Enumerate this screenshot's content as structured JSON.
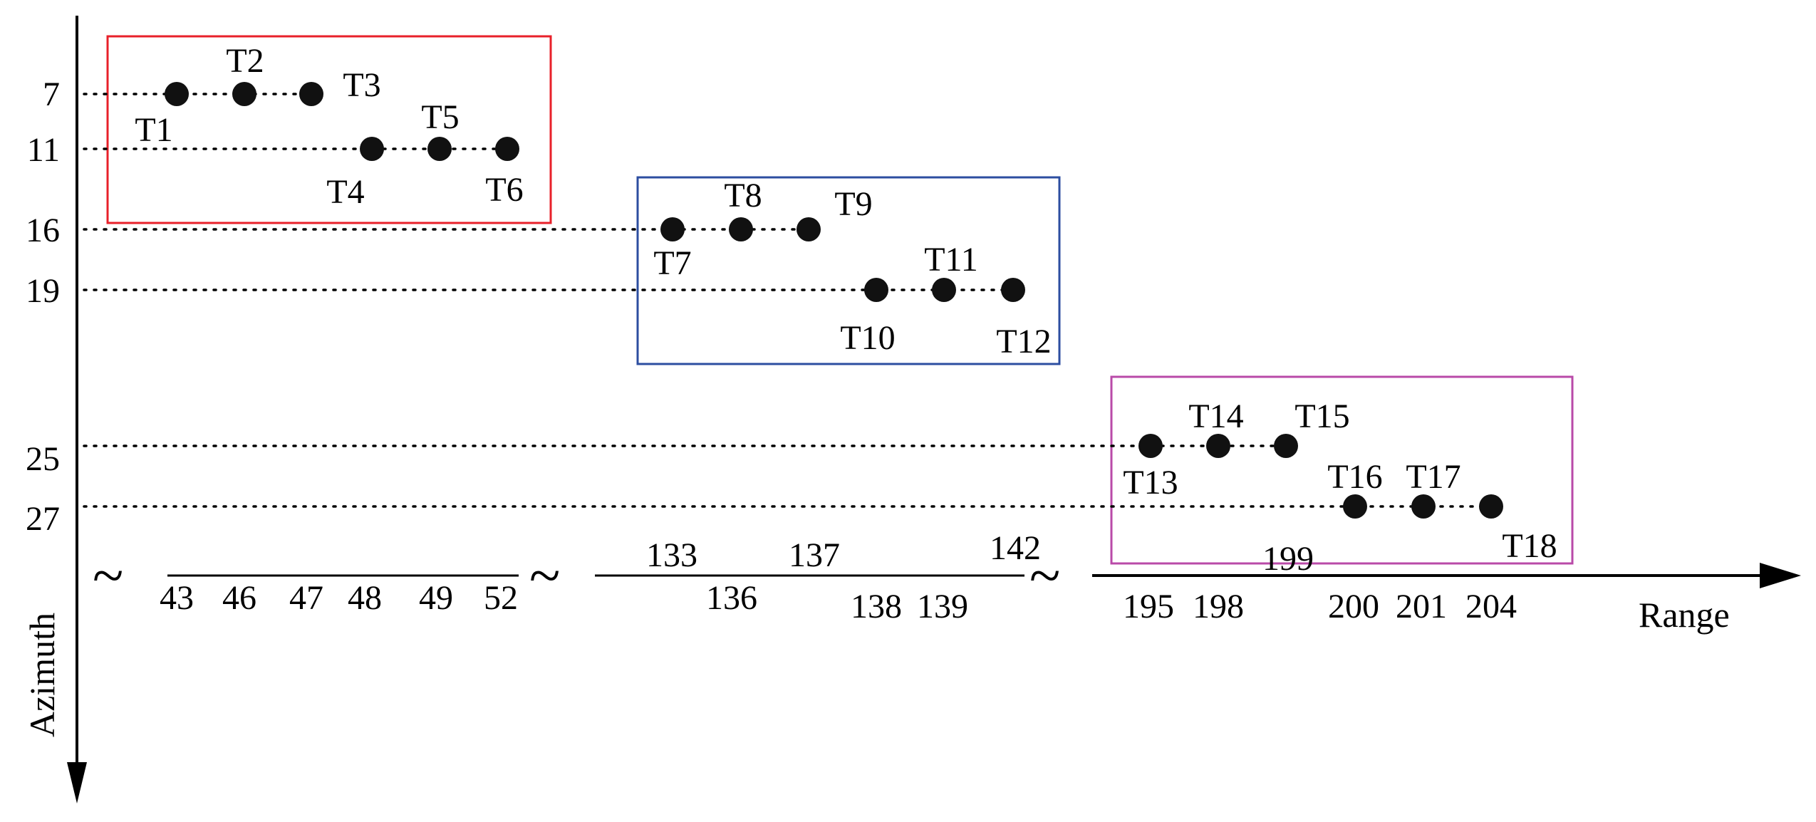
{
  "axes": {
    "vertical_label": "Azimuth",
    "horizontal_label": "Range"
  },
  "azimuth_ticks": [
    "7",
    "11",
    "16",
    "19",
    "25",
    "27"
  ],
  "range_ticks": [
    "43",
    "46",
    "47",
    "48",
    "49",
    "52",
    "133",
    "136",
    "137",
    "138",
    "139",
    "142",
    "195",
    "198",
    "199",
    "200",
    "201",
    "204"
  ],
  "axis_break_symbol": "~",
  "groups": [
    {
      "name": "group-1",
      "color": "#e8202a"
    },
    {
      "name": "group-2",
      "color": "#2c4ea0"
    },
    {
      "name": "group-3",
      "color": "#b94aa8"
    }
  ],
  "targets": [
    {
      "label": "T1",
      "range": 43,
      "azimuth": 7
    },
    {
      "label": "T2",
      "range": 46,
      "azimuth": 7
    },
    {
      "label": "T3",
      "range": 47,
      "azimuth": 7
    },
    {
      "label": "T4",
      "range": 48,
      "azimuth": 11
    },
    {
      "label": "T5",
      "range": 49,
      "azimuth": 11
    },
    {
      "label": "T6",
      "range": 52,
      "azimuth": 11
    },
    {
      "label": "T7",
      "range": 133,
      "azimuth": 16
    },
    {
      "label": "T8",
      "range": 136,
      "azimuth": 16
    },
    {
      "label": "T9",
      "range": 137,
      "azimuth": 16
    },
    {
      "label": "T10",
      "range": 138,
      "azimuth": 19
    },
    {
      "label": "T11",
      "range": 139,
      "azimuth": 19
    },
    {
      "label": "T12",
      "range": 142,
      "azimuth": 19
    },
    {
      "label": "T13",
      "range": 195,
      "azimuth": 25
    },
    {
      "label": "T14",
      "range": 198,
      "azimuth": 25
    },
    {
      "label": "T15",
      "range": 199,
      "azimuth": 25
    },
    {
      "label": "T16",
      "range": 200,
      "azimuth": 27
    },
    {
      "label": "T17",
      "range": 201,
      "azimuth": 27
    },
    {
      "label": "T18",
      "range": 204,
      "azimuth": 27
    }
  ]
}
